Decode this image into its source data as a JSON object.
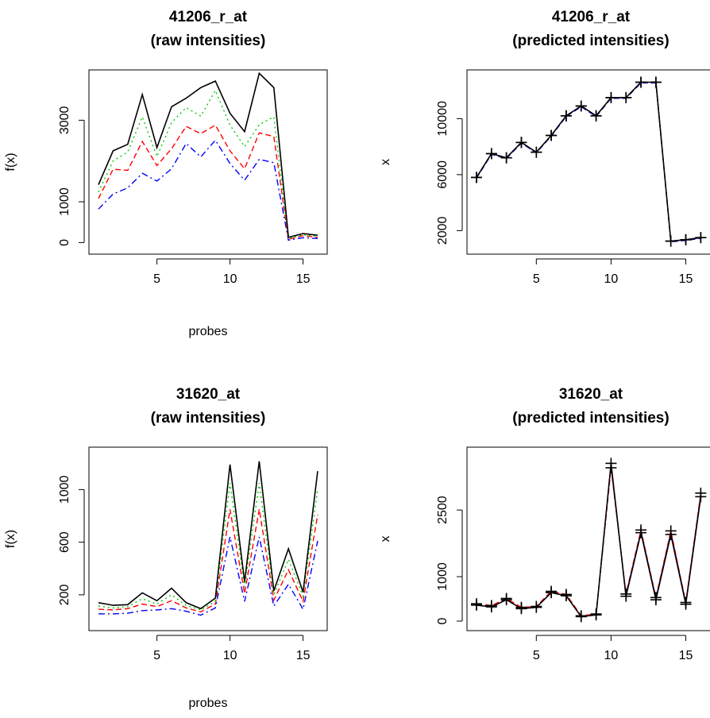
{
  "colors": {
    "black": "#000000",
    "red": "#ff0000",
    "green": "#00cd00",
    "blue": "#0000ff"
  },
  "chart_data": [
    {
      "type": "line",
      "title": "41206_r_at\n(raw intensities)",
      "xlabel": "probes",
      "ylabel": "f(x)",
      "xlim": [
        1,
        16
      ],
      "ylim": [
        -50,
        4000
      ],
      "xticks": [
        5,
        10,
        15
      ],
      "yticks": [
        0,
        1000,
        3000
      ],
      "grid": false,
      "x": [
        1,
        2,
        3,
        4,
        5,
        6,
        7,
        8,
        9,
        10,
        11,
        12,
        13,
        14,
        15,
        16
      ],
      "series": [
        {
          "color": "black",
          "dash": "solid",
          "values": [
            1420,
            2250,
            2410,
            3630,
            2330,
            3330,
            3540,
            3800,
            3960,
            3170,
            2720,
            4150,
            3800,
            130,
            220,
            180
          ]
        },
        {
          "color": "green",
          "dash": "dotted",
          "values": [
            1240,
            2000,
            2220,
            3080,
            2110,
            2940,
            3310,
            3100,
            3730,
            2880,
            2350,
            2890,
            3080,
            100,
            190,
            150
          ]
        },
        {
          "color": "red",
          "dash": "dashed",
          "values": [
            1080,
            1800,
            1770,
            2480,
            1890,
            2300,
            2850,
            2670,
            2880,
            2250,
            1810,
            2690,
            2600,
            80,
            170,
            130
          ]
        },
        {
          "color": "blue",
          "dash": "dashdot",
          "values": [
            820,
            1190,
            1340,
            1700,
            1510,
            1810,
            2430,
            2100,
            2510,
            1940,
            1530,
            2040,
            1960,
            60,
            120,
            100
          ]
        }
      ]
    },
    {
      "type": "line",
      "title": "41206_r_at\n(predicted intensities)",
      "xlabel": "",
      "ylabel": "x",
      "xlim": [
        1,
        16.3
      ],
      "ylim": [
        1000,
        12800
      ],
      "xticks": [
        5,
        10,
        15
      ],
      "yticks": [
        2000,
        6000,
        10000
      ],
      "grid": false,
      "marker": "+",
      "x": [
        1,
        2,
        3,
        4,
        5,
        6,
        7,
        8,
        9,
        10,
        11,
        12,
        13,
        14,
        15,
        16
      ],
      "series": [
        {
          "color": "black",
          "dash": "solid",
          "values": [
            5800,
            7500,
            7200,
            8300,
            7600,
            8800,
            10200,
            10900,
            10200,
            11500,
            11500,
            12600,
            12600,
            1250,
            1350,
            1500
          ]
        },
        {
          "color": "red",
          "dash": "dashed",
          "values": [
            5800,
            7500,
            7200,
            8300,
            7600,
            8800,
            10200,
            10900,
            10200,
            11500,
            11500,
            12600,
            12600,
            1250,
            1350,
            1500
          ]
        },
        {
          "color": "blue",
          "dash": "dashed",
          "values": [
            5750,
            7450,
            7150,
            8250,
            7550,
            8750,
            10150,
            10850,
            10150,
            11450,
            11450,
            12550,
            12550,
            1200,
            1300,
            1450
          ]
        }
      ]
    },
    {
      "type": "line",
      "title": "31620_at\n(raw intensities)",
      "xlabel": "probes",
      "ylabel": "f(x)",
      "xlim": [
        1,
        16
      ],
      "ylim": [
        0,
        1250
      ],
      "xticks": [
        5,
        10,
        15
      ],
      "yticks": [
        200,
        600,
        1000
      ],
      "grid": false,
      "x": [
        1,
        2,
        3,
        4,
        5,
        6,
        7,
        8,
        9,
        10,
        11,
        12,
        13,
        14,
        15,
        16
      ],
      "series": [
        {
          "color": "black",
          "dash": "solid",
          "values": [
            140,
            120,
            125,
            215,
            155,
            250,
            140,
            95,
            175,
            1190,
            300,
            1215,
            230,
            550,
            220,
            1140
          ]
        },
        {
          "color": "green",
          "dash": "dotted",
          "values": [
            115,
            100,
            110,
            170,
            130,
            200,
            120,
            85,
            150,
            1050,
            260,
            1050,
            200,
            470,
            190,
            1000
          ]
        },
        {
          "color": "red",
          "dash": "dashed",
          "values": [
            90,
            85,
            95,
            130,
            110,
            155,
            100,
            70,
            130,
            850,
            210,
            850,
            160,
            390,
            150,
            810
          ]
        },
        {
          "color": "blue",
          "dash": "dashdot",
          "values": [
            55,
            55,
            60,
            80,
            85,
            95,
            75,
            45,
            100,
            640,
            150,
            640,
            115,
            280,
            90,
            610
          ]
        }
      ]
    },
    {
      "type": "line",
      "title": "31620_at\n(predicted intensities)",
      "xlabel": "",
      "ylabel": "x",
      "xlim": [
        1,
        16.3
      ],
      "ylim": [
        0,
        3700
      ],
      "xticks": [
        5,
        10,
        15
      ],
      "yticks": [
        0,
        1000,
        2500
      ],
      "grid": false,
      "marker": "+",
      "x": [
        1,
        2,
        3,
        4,
        5,
        6,
        7,
        8,
        9,
        10,
        11,
        12,
        13,
        14,
        15,
        16
      ],
      "series": [
        {
          "color": "black",
          "dash": "solid",
          "values": [
            360,
            320,
            480,
            280,
            310,
            640,
            570,
            100,
            140,
            3550,
            560,
            1990,
            480,
            1950,
            380,
            2800
          ]
        },
        {
          "color": "red",
          "dash": "dashed",
          "values": [
            390,
            350,
            510,
            310,
            330,
            670,
            600,
            120,
            160,
            3450,
            610,
            2050,
            530,
            2030,
            420,
            2880
          ]
        },
        {
          "color": "blue",
          "dash": "dashed",
          "values": [
            380,
            340,
            500,
            300,
            320,
            660,
            590,
            110,
            150,
            3500,
            590,
            2020,
            510,
            2000,
            400,
            2840
          ]
        }
      ]
    }
  ]
}
